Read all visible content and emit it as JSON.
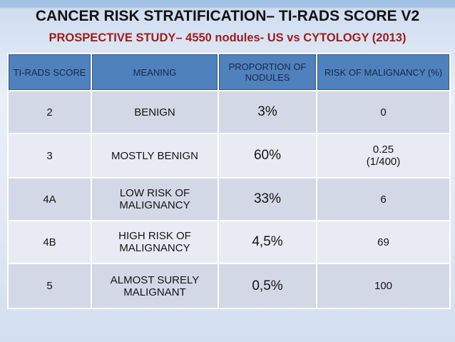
{
  "slide": {
    "title": "CANCER RISK STRATIFICATION– TI-RADS SCORE V2",
    "subtitle": "PROSPECTIVE STUDY– 4550 nodules- US vs CYTOLOGY (2013)"
  },
  "colors": {
    "bg_top_strip": "#A4C2E4",
    "bg_bottom": "#D2DFEF",
    "title_text": "#121212",
    "subtitle_text": "#9E1C1C",
    "header_bg": "#4F81BD",
    "header_text": "#17294A",
    "row_dark": "#D2D8E6",
    "row_light": "#E8EBF3",
    "body_text": "#141414",
    "cell_border": "#FFFFFF"
  },
  "chart_data": {
    "type": "table",
    "title": "CANCER RISK STRATIFICATION– TI-RADS SCORE V2",
    "subtitle": "PROSPECTIVE STUDY– 4550 nodules- US vs CYTOLOGY (2013)",
    "columns": [
      "TI-RADS SCORE",
      "MEANING",
      "PROPORTION OF NODULES",
      "RISK OF MALIGNANCY (%)"
    ],
    "rows": [
      {
        "score": "2",
        "meaning": "BENIGN",
        "proportion": "3%",
        "risk": "0"
      },
      {
        "score": "3",
        "meaning": "MOSTLY BENIGN",
        "proportion": "60%",
        "risk": "0.25\n(1/400)"
      },
      {
        "score": "4A",
        "meaning": "LOW RISK OF\nMALIGNANCY",
        "proportion": "33%",
        "risk": "6"
      },
      {
        "score": "4B",
        "meaning": "HIGH RISK OF\nMALIGNANCY",
        "proportion": "4,5%",
        "risk": "69"
      },
      {
        "score": "5",
        "meaning": "ALMOST SURELY\nMALIGNANT",
        "proportion": "0,5%",
        "risk": "100"
      }
    ]
  }
}
